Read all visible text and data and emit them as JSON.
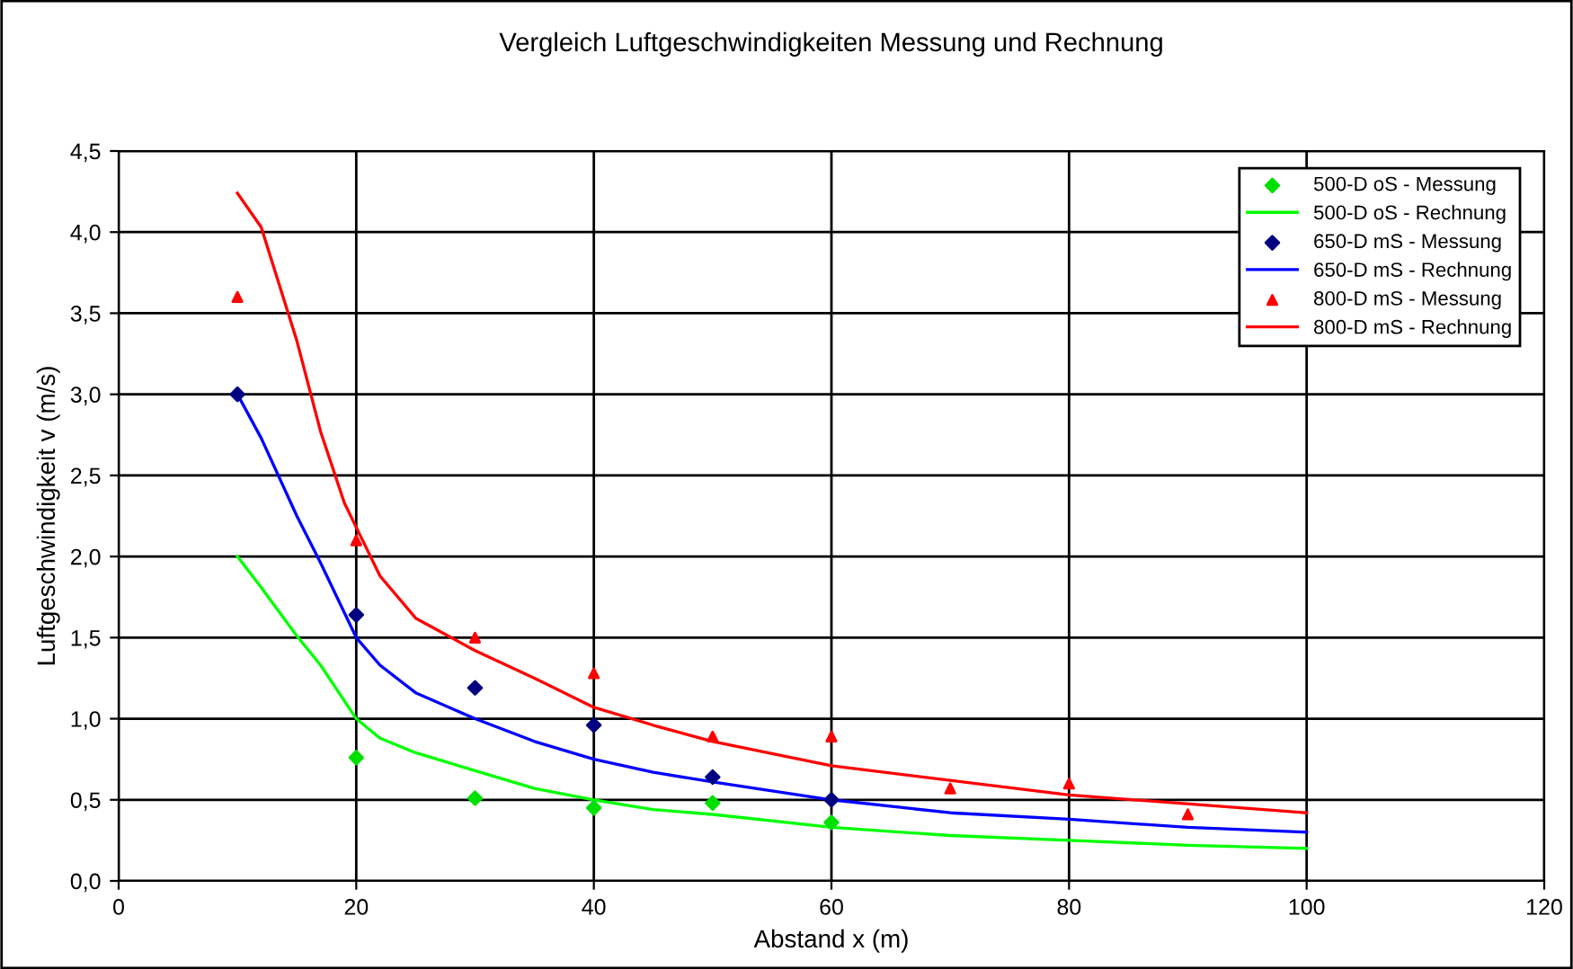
{
  "chart_data": {
    "type": "line",
    "title": "Vergleich Luftgeschwindigkeiten Messung und Rechnung",
    "xlabel": "Abstand x (m)",
    "ylabel": "Luftgeschwindigkeit v (m/s)",
    "xlim": [
      0,
      120
    ],
    "xticks": [
      0,
      20,
      40,
      60,
      80,
      100,
      120
    ],
    "ylim": [
      0,
      4.5
    ],
    "yticks": [
      {
        "value": 0,
        "label": "0,0"
      },
      {
        "value": 0.5,
        "label": "0,5"
      },
      {
        "value": 1,
        "label": "1,0"
      },
      {
        "value": 1.5,
        "label": "1,5"
      },
      {
        "value": 2,
        "label": "2,0"
      },
      {
        "value": 2.5,
        "label": "2,5"
      },
      {
        "value": 3,
        "label": "3,0"
      },
      {
        "value": 3.5,
        "label": "3,5"
      },
      {
        "value": 4,
        "label": "4,0"
      },
      {
        "value": 4.5,
        "label": "4,5"
      }
    ],
    "grid": true,
    "legend": "top right",
    "series": [
      {
        "name": "500-D oS - Messung",
        "type": "scatter",
        "marker": "diamond",
        "color": "#00e000",
        "x": [
          20,
          30,
          40,
          50,
          60
        ],
        "values": [
          0.76,
          0.51,
          0.45,
          0.48,
          0.36
        ]
      },
      {
        "name": "500-D oS - Rechnung",
        "marker": "none",
        "color": "#00ff00",
        "x": [
          10,
          12,
          15,
          17,
          20,
          22,
          25,
          30,
          35,
          40,
          45,
          50,
          60,
          70,
          80,
          90,
          100
        ],
        "values": [
          2.0,
          1.81,
          1.51,
          1.33,
          1.0,
          0.88,
          0.79,
          0.68,
          0.57,
          0.5,
          0.44,
          0.41,
          0.33,
          0.28,
          0.25,
          0.22,
          0.2
        ]
      },
      {
        "name": "650-D mS - Messung",
        "type": "scatter",
        "marker": "diamond",
        "color": "#000080",
        "x": [
          10,
          20,
          30,
          40,
          50,
          60
        ],
        "values": [
          3.0,
          1.64,
          1.19,
          0.96,
          0.64,
          0.5
        ]
      },
      {
        "name": "650-D mS - Rechnung",
        "marker": "none",
        "color": "#0000ff",
        "x": [
          10,
          12,
          15,
          17,
          20,
          22,
          25,
          30,
          35,
          40,
          45,
          50,
          60,
          70,
          80,
          90,
          100
        ],
        "values": [
          3.0,
          2.73,
          2.25,
          1.96,
          1.5,
          1.33,
          1.16,
          1.0,
          0.86,
          0.75,
          0.67,
          0.61,
          0.5,
          0.42,
          0.38,
          0.33,
          0.3
        ]
      },
      {
        "name": "800-D mS - Messung",
        "type": "scatter",
        "marker": "triangle",
        "color": "#ff0000",
        "x": [
          10,
          20,
          30,
          40,
          50,
          60,
          70,
          80,
          90
        ],
        "values": [
          3.6,
          2.1,
          1.5,
          1.28,
          0.89,
          0.89,
          0.57,
          0.6,
          0.41
        ]
      },
      {
        "name": "800-D mS - Rechnung",
        "marker": "none",
        "color": "#ff0000",
        "x": [
          10,
          12,
          15,
          17,
          19,
          20,
          22,
          25,
          30,
          35,
          40,
          45,
          50,
          60,
          80,
          100
        ],
        "values": [
          4.24,
          4.03,
          3.33,
          2.77,
          2.33,
          2.18,
          1.88,
          1.62,
          1.42,
          1.25,
          1.07,
          0.96,
          0.86,
          0.71,
          0.53,
          0.42
        ]
      }
    ]
  }
}
